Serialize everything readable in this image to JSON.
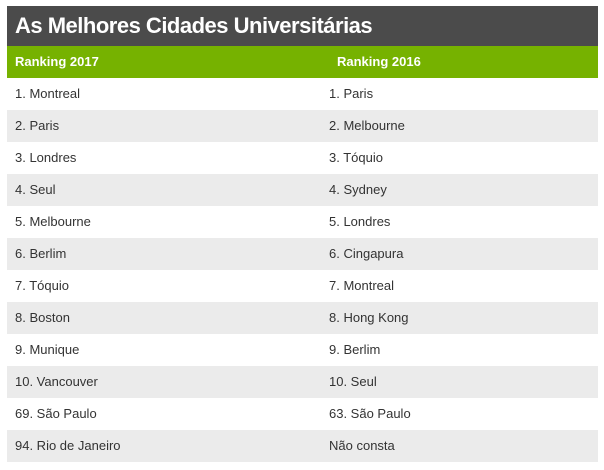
{
  "title": "As Melhores Cidades Universitárias",
  "columns": [
    "Ranking 2017",
    "Ranking 2016"
  ],
  "rows": [
    [
      "1. Montreal",
      "1. Paris"
    ],
    [
      "2. Paris",
      "2. Melbourne"
    ],
    [
      "3. Londres",
      "3. Tóquio"
    ],
    [
      "4. Seul",
      "4. Sydney"
    ],
    [
      "5. Melbourne",
      "5. Londres"
    ],
    [
      "6. Berlim",
      "6. Cingapura"
    ],
    [
      "7. Tóquio",
      "7. Montreal"
    ],
    [
      "8. Boston",
      "8. Hong Kong"
    ],
    [
      "9. Munique",
      "9. Berlim"
    ],
    [
      "10. Vancouver",
      "10. Seul"
    ],
    [
      "69. São Paulo",
      "63. São Paulo"
    ],
    [
      "94. Rio de Janeiro",
      "Não consta"
    ]
  ],
  "colors": {
    "title_bg": "#4b4b4b",
    "header_bg": "#76b200",
    "stripe": "#ebebeb"
  }
}
